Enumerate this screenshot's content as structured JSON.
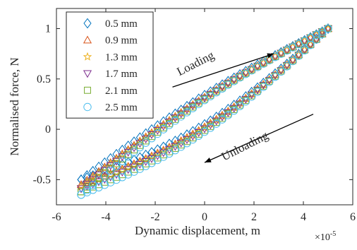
{
  "chart_data": {
    "type": "scatter",
    "title": "",
    "xlabel": "Dynamic displacement, m",
    "ylabel": "Normalised force, N",
    "x_exponent_label": "×10",
    "x_exponent_power": "-5",
    "xlim": [
      -6,
      6
    ],
    "ylim": [
      -0.75,
      1.2
    ],
    "x_ticks": [
      -6,
      -4,
      -2,
      0,
      2,
      4,
      6
    ],
    "x_tick_labels": [
      "-6",
      "-4",
      "-2",
      "0",
      "2",
      "4",
      "6"
    ],
    "y_ticks": [
      -0.5,
      0,
      0.5,
      1
    ],
    "y_tick_labels": [
      "-0.5",
      "0",
      "0.5",
      "1"
    ],
    "grid": false,
    "legend_position": "top-left",
    "series": [
      {
        "name": "0.5 mm",
        "marker": "diamond",
        "color": "#0072BD",
        "y_at_min": -0.5,
        "load_offset": 0.0
      },
      {
        "name": "0.9 mm",
        "marker": "triangle-up",
        "color": "#D95319",
        "y_at_min": -0.55,
        "load_offset": 0.005
      },
      {
        "name": "1.3 mm",
        "marker": "star",
        "color": "#EDB120",
        "y_at_min": -0.57,
        "load_offset": 0.01
      },
      {
        "name": "1.7 mm",
        "marker": "triangle-down",
        "color": "#7E2F8E",
        "y_at_min": -0.59,
        "load_offset": 0.015
      },
      {
        "name": "2.1 mm",
        "marker": "square",
        "color": "#77AC30",
        "y_at_min": -0.62,
        "load_offset": 0.02
      },
      {
        "name": "2.5 mm",
        "marker": "circle",
        "color": "#4DBEEE",
        "y_at_min": -0.65,
        "load_offset": 0.025
      }
    ],
    "loop_shape": {
      "x_min": -5,
      "x_max": 5,
      "y_at_max": 1.0,
      "loading_mid_offset": 0.09,
      "unloading_mid_offset": -0.2,
      "points_per_branch": 42
    },
    "annotations": [
      {
        "text": "Loading",
        "direction": "increasing",
        "x": -0.3,
        "y": 0.62,
        "angle": -27,
        "arrow_from": [
          -1.3,
          0.42
        ],
        "arrow_to": [
          2.8,
          0.75
        ]
      },
      {
        "text": "Unloading",
        "direction": "decreasing",
        "x": 1.7,
        "y": -0.2,
        "angle": -27,
        "arrow_from": [
          4.4,
          0.15
        ],
        "arrow_to": [
          0.0,
          -0.33
        ]
      }
    ]
  }
}
